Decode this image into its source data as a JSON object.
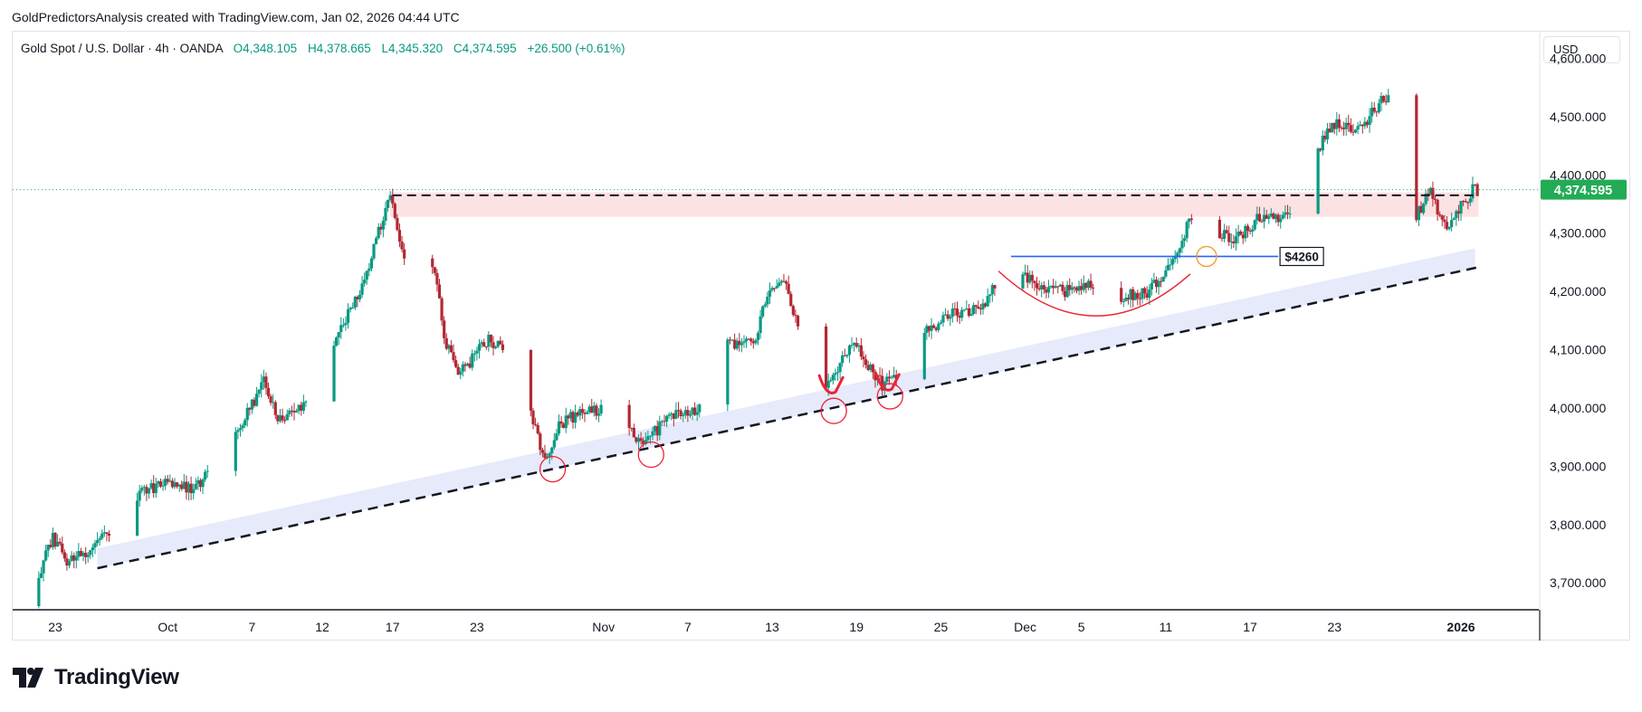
{
  "attribution": "GoldPredictorsAnalysis created with TradingView.com, Jan 02, 2026 04:44 UTC",
  "legend": {
    "symbol": "Gold Spot / U.S. Dollar · 4h · OANDA",
    "open": "O4,348.105",
    "high": "H4,378.665",
    "low": "L4,345.320",
    "close": "C4,374.595",
    "change": "+26.500 (+0.61%)"
  },
  "currency_label": "USD",
  "brand": "TradingView",
  "colors": {
    "up": "#089981",
    "down": "#b22833",
    "price_badge": "#22ab55",
    "resistance_zone": "#fde2e4",
    "trend_channel": "#e6eafb",
    "annotation": "#ee2233",
    "neckline": "#2962ff",
    "breakout_marker": "#f59e2b"
  },
  "chart_data": {
    "type": "candlestick",
    "symbol": "XAUUSD",
    "timeframe": "4h",
    "ylim": [
      3660,
      4610
    ],
    "y_ticks": [
      3700,
      3800,
      3900,
      4000,
      4100,
      4200,
      4300,
      4400,
      4500,
      4600
    ],
    "y_tick_labels": [
      "3,700.000",
      "3,800.000",
      "3,900.000",
      "4,000.000",
      "4,100.000",
      "4,200.000",
      "4,300.000",
      "4,400.000",
      "4,500.000",
      "4,600.000"
    ],
    "x_ticks": [
      {
        "date": "2025-09-23",
        "label": "23"
      },
      {
        "date": "2025-10-01",
        "label": "Oct"
      },
      {
        "date": "2025-10-07",
        "label": "7"
      },
      {
        "date": "2025-10-12",
        "label": "12"
      },
      {
        "date": "2025-10-17",
        "label": "17"
      },
      {
        "date": "2025-10-23",
        "label": "23"
      },
      {
        "date": "2025-11-01",
        "label": "Nov"
      },
      {
        "date": "2025-11-07",
        "label": "7"
      },
      {
        "date": "2025-11-13",
        "label": "13"
      },
      {
        "date": "2025-11-19",
        "label": "19"
      },
      {
        "date": "2025-11-25",
        "label": "25"
      },
      {
        "date": "2025-12-01",
        "label": "Dec"
      },
      {
        "date": "2025-12-05",
        "label": "5"
      },
      {
        "date": "2025-12-11",
        "label": "11"
      },
      {
        "date": "2025-12-17",
        "label": "17"
      },
      {
        "date": "2025-12-23",
        "label": "23"
      },
      {
        "date": "2026-01-01",
        "label": "2026"
      }
    ],
    "last_price": 4374.595,
    "last_price_label": "4,374.595",
    "price_path": [
      {
        "date": "2025-09-21",
        "close": 3660
      },
      {
        "date": "2025-09-23",
        "close": 3775
      },
      {
        "date": "2025-09-24",
        "close": 3740
      },
      {
        "date": "2025-09-26",
        "close": 3760
      },
      {
        "date": "2025-09-29",
        "close": 3850
      },
      {
        "date": "2025-10-01",
        "close": 3875
      },
      {
        "date": "2025-10-03",
        "close": 3860
      },
      {
        "date": "2025-10-06",
        "close": 3950
      },
      {
        "date": "2025-10-08",
        "close": 4045
      },
      {
        "date": "2025-10-09",
        "close": 3980
      },
      {
        "date": "2025-10-11",
        "close": 4005
      },
      {
        "date": "2025-10-13",
        "close": 4110
      },
      {
        "date": "2025-10-15",
        "close": 4210
      },
      {
        "date": "2025-10-17",
        "close": 4370
      },
      {
        "date": "2025-10-18",
        "close": 4250
      },
      {
        "date": "2025-10-19",
        "close": 4360
      },
      {
        "date": "2025-10-20",
        "close": 4250
      },
      {
        "date": "2025-10-21",
        "close": 4105
      },
      {
        "date": "2025-10-22",
        "close": 4060
      },
      {
        "date": "2025-10-24",
        "close": 4120
      },
      {
        "date": "2025-10-26",
        "close": 4080
      },
      {
        "date": "2025-10-28",
        "close": 3910
      },
      {
        "date": "2025-10-29",
        "close": 3970
      },
      {
        "date": "2025-10-31",
        "close": 4000
      },
      {
        "date": "2025-11-02",
        "close": 3990
      },
      {
        "date": "2025-11-04",
        "close": 3940
      },
      {
        "date": "2025-11-06",
        "close": 3985
      },
      {
        "date": "2025-11-08",
        "close": 4000
      },
      {
        "date": "2025-11-10",
        "close": 4110
      },
      {
        "date": "2025-11-12",
        "close": 4120
      },
      {
        "date": "2025-11-13",
        "close": 4210
      },
      {
        "date": "2025-11-14",
        "close": 4220
      },
      {
        "date": "2025-11-16",
        "close": 4070
      },
      {
        "date": "2025-11-17",
        "close": 4040
      },
      {
        "date": "2025-11-19",
        "close": 4110
      },
      {
        "date": "2025-11-20",
        "close": 4070
      },
      {
        "date": "2025-11-21",
        "close": 4040
      },
      {
        "date": "2025-11-23",
        "close": 4060
      },
      {
        "date": "2025-11-24",
        "close": 4130
      },
      {
        "date": "2025-11-26",
        "close": 4160
      },
      {
        "date": "2025-11-28",
        "close": 4170
      },
      {
        "date": "2025-11-30",
        "close": 4245
      },
      {
        "date": "2025-12-02",
        "close": 4210
      },
      {
        "date": "2025-12-04",
        "close": 4200
      },
      {
        "date": "2025-12-06",
        "close": 4210
      },
      {
        "date": "2025-12-08",
        "close": 4190
      },
      {
        "date": "2025-12-10",
        "close": 4200
      },
      {
        "date": "2025-12-11",
        "close": 4230
      },
      {
        "date": "2025-12-12",
        "close": 4270
      },
      {
        "date": "2025-12-13",
        "close": 4330
      },
      {
        "date": "2025-12-15",
        "close": 4300
      },
      {
        "date": "2025-12-16",
        "close": 4285
      },
      {
        "date": "2025-12-18",
        "close": 4330
      },
      {
        "date": "2025-12-20",
        "close": 4330
      },
      {
        "date": "2025-12-22",
        "close": 4440
      },
      {
        "date": "2025-12-23",
        "close": 4490
      },
      {
        "date": "2025-12-25",
        "close": 4480
      },
      {
        "date": "2025-12-26",
        "close": 4510
      },
      {
        "date": "2025-12-27",
        "close": 4540
      },
      {
        "date": "2025-12-28",
        "close": 4450
      },
      {
        "date": "2025-12-29",
        "close": 4330
      },
      {
        "date": "2025-12-30",
        "close": 4370
      },
      {
        "date": "2025-12-31",
        "close": 4310
      },
      {
        "date": "2026-01-01",
        "close": 4340
      },
      {
        "date": "2026-01-02",
        "close": 4374.595
      }
    ],
    "annotations": {
      "resistance_level": 4365,
      "resistance_zone": [
        4328,
        4370
      ],
      "support_trendline": [
        {
          "date": "2025-09-26",
          "price": 3725
        },
        {
          "date": "2026-01-02",
          "price": 4240
        }
      ],
      "neckline_level": 4260,
      "neckline_label": "$4260",
      "rounded_bottom": {
        "start": "2025-11-30",
        "end": "2025-12-13",
        "bottom": 4155
      },
      "touch_points": [
        {
          "date": "2025-10-28",
          "price": 3895
        },
        {
          "date": "2025-11-04",
          "price": 3920
        },
        {
          "date": "2025-11-17",
          "price": 3995
        },
        {
          "date": "2025-11-21",
          "price": 4020
        }
      ],
      "breakout_point": {
        "date": "2025-12-13",
        "price": 4260
      }
    }
  }
}
